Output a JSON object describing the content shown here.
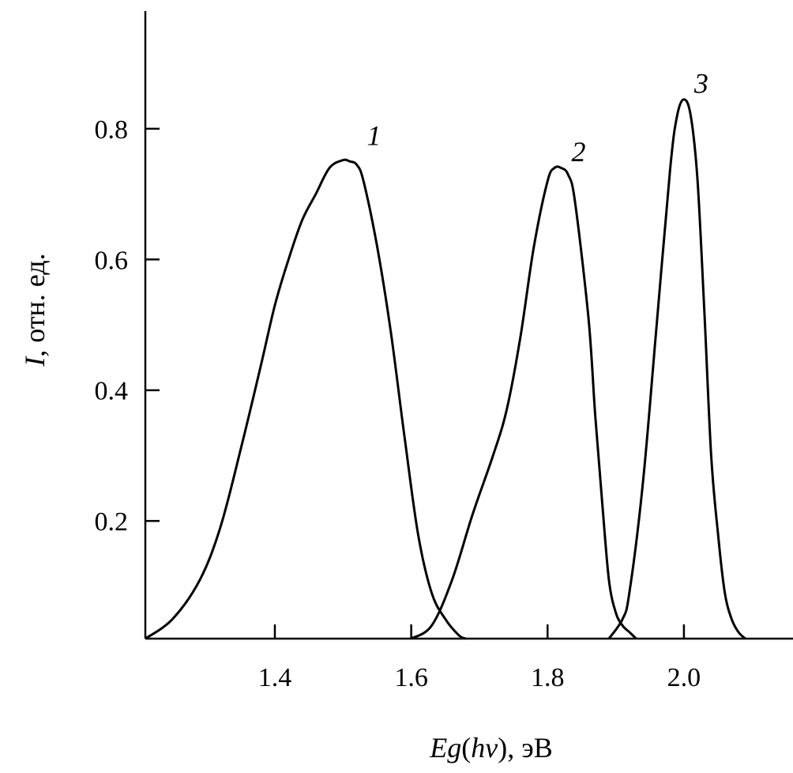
{
  "chart_data": {
    "type": "line",
    "xlabel": {
      "italic": "Eg",
      "open": "(",
      "var": "hv",
      "close": ")",
      "unit": ", эВ"
    },
    "ylabel": {
      "italic": "I",
      "rest": ", отн. ед."
    },
    "xlim": [
      1.21,
      2.16
    ],
    "ylim": [
      0.02,
      0.98
    ],
    "xticks": [
      {
        "value": 1.4,
        "label": "1.4"
      },
      {
        "value": 1.6,
        "label": "1.6"
      },
      {
        "value": 1.8,
        "label": "1.8"
      },
      {
        "value": 2.0,
        "label": "2.0"
      }
    ],
    "yticks": [
      {
        "value": 0.2,
        "label": "0.2"
      },
      {
        "value": 0.4,
        "label": "0.4"
      },
      {
        "value": 0.6,
        "label": "0.6"
      },
      {
        "value": 0.8,
        "label": "0.8"
      }
    ],
    "grid": false,
    "series": [
      {
        "label": "1",
        "label_at": [
          1.535,
          0.775
        ],
        "x": [
          1.21,
          1.25,
          1.29,
          1.32,
          1.35,
          1.38,
          1.4,
          1.42,
          1.44,
          1.46,
          1.48,
          1.5,
          1.51,
          1.52,
          1.53,
          1.55,
          1.57,
          1.59,
          1.61,
          1.63,
          1.65,
          1.67,
          1.68
        ],
        "y": [
          0.02,
          0.05,
          0.11,
          0.19,
          0.31,
          0.44,
          0.53,
          0.6,
          0.66,
          0.7,
          0.74,
          0.752,
          0.75,
          0.745,
          0.72,
          0.62,
          0.49,
          0.33,
          0.18,
          0.09,
          0.05,
          0.025,
          0.02
        ]
      },
      {
        "label": "2",
        "label_at": [
          1.835,
          0.75
        ],
        "x": [
          1.6,
          1.63,
          1.66,
          1.69,
          1.72,
          1.74,
          1.76,
          1.78,
          1.8,
          1.81,
          1.82,
          1.83,
          1.84,
          1.86,
          1.87,
          1.88,
          1.89,
          1.9,
          1.91,
          1.92,
          1.93
        ],
        "y": [
          0.02,
          0.04,
          0.11,
          0.21,
          0.3,
          0.37,
          0.48,
          0.62,
          0.72,
          0.74,
          0.74,
          0.73,
          0.69,
          0.51,
          0.36,
          0.23,
          0.11,
          0.06,
          0.04,
          0.03,
          0.02
        ]
      },
      {
        "label": "3",
        "label_at": [
          2.015,
          0.855
        ],
        "x": [
          1.89,
          1.91,
          1.92,
          1.94,
          1.96,
          1.98,
          1.99,
          2.0,
          2.01,
          2.02,
          2.03,
          2.04,
          2.05,
          2.06,
          2.07,
          2.08,
          2.09
        ],
        "y": [
          0.02,
          0.05,
          0.09,
          0.26,
          0.5,
          0.74,
          0.82,
          0.845,
          0.82,
          0.72,
          0.52,
          0.3,
          0.18,
          0.09,
          0.05,
          0.03,
          0.02
        ]
      }
    ]
  }
}
